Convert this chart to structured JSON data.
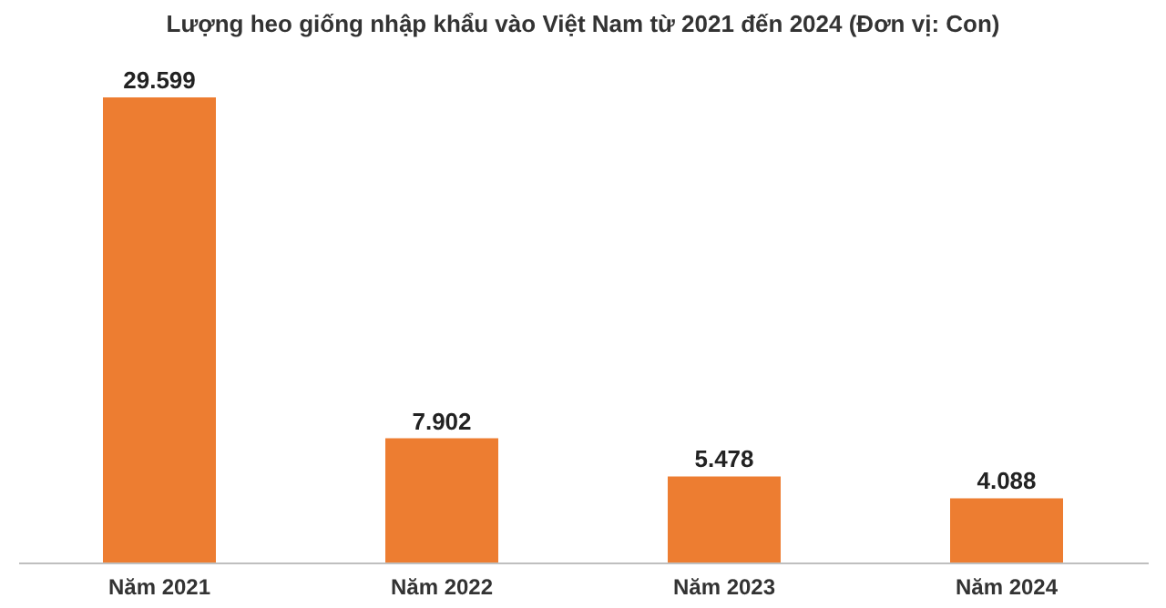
{
  "chart_data": {
    "type": "bar",
    "title": "Lượng heo giống nhập khẩu vào Việt Nam từ 2021 đến 2024 (Đơn vị: Con)",
    "categories": [
      "Năm 2021",
      "Năm 2022",
      "Năm 2023",
      "Năm 2024"
    ],
    "values": [
      29599,
      7902,
      5478,
      4088
    ],
    "value_labels": [
      "29.599",
      "7.902",
      "5.478",
      "4.088"
    ],
    "color": "#ed7d31"
  }
}
